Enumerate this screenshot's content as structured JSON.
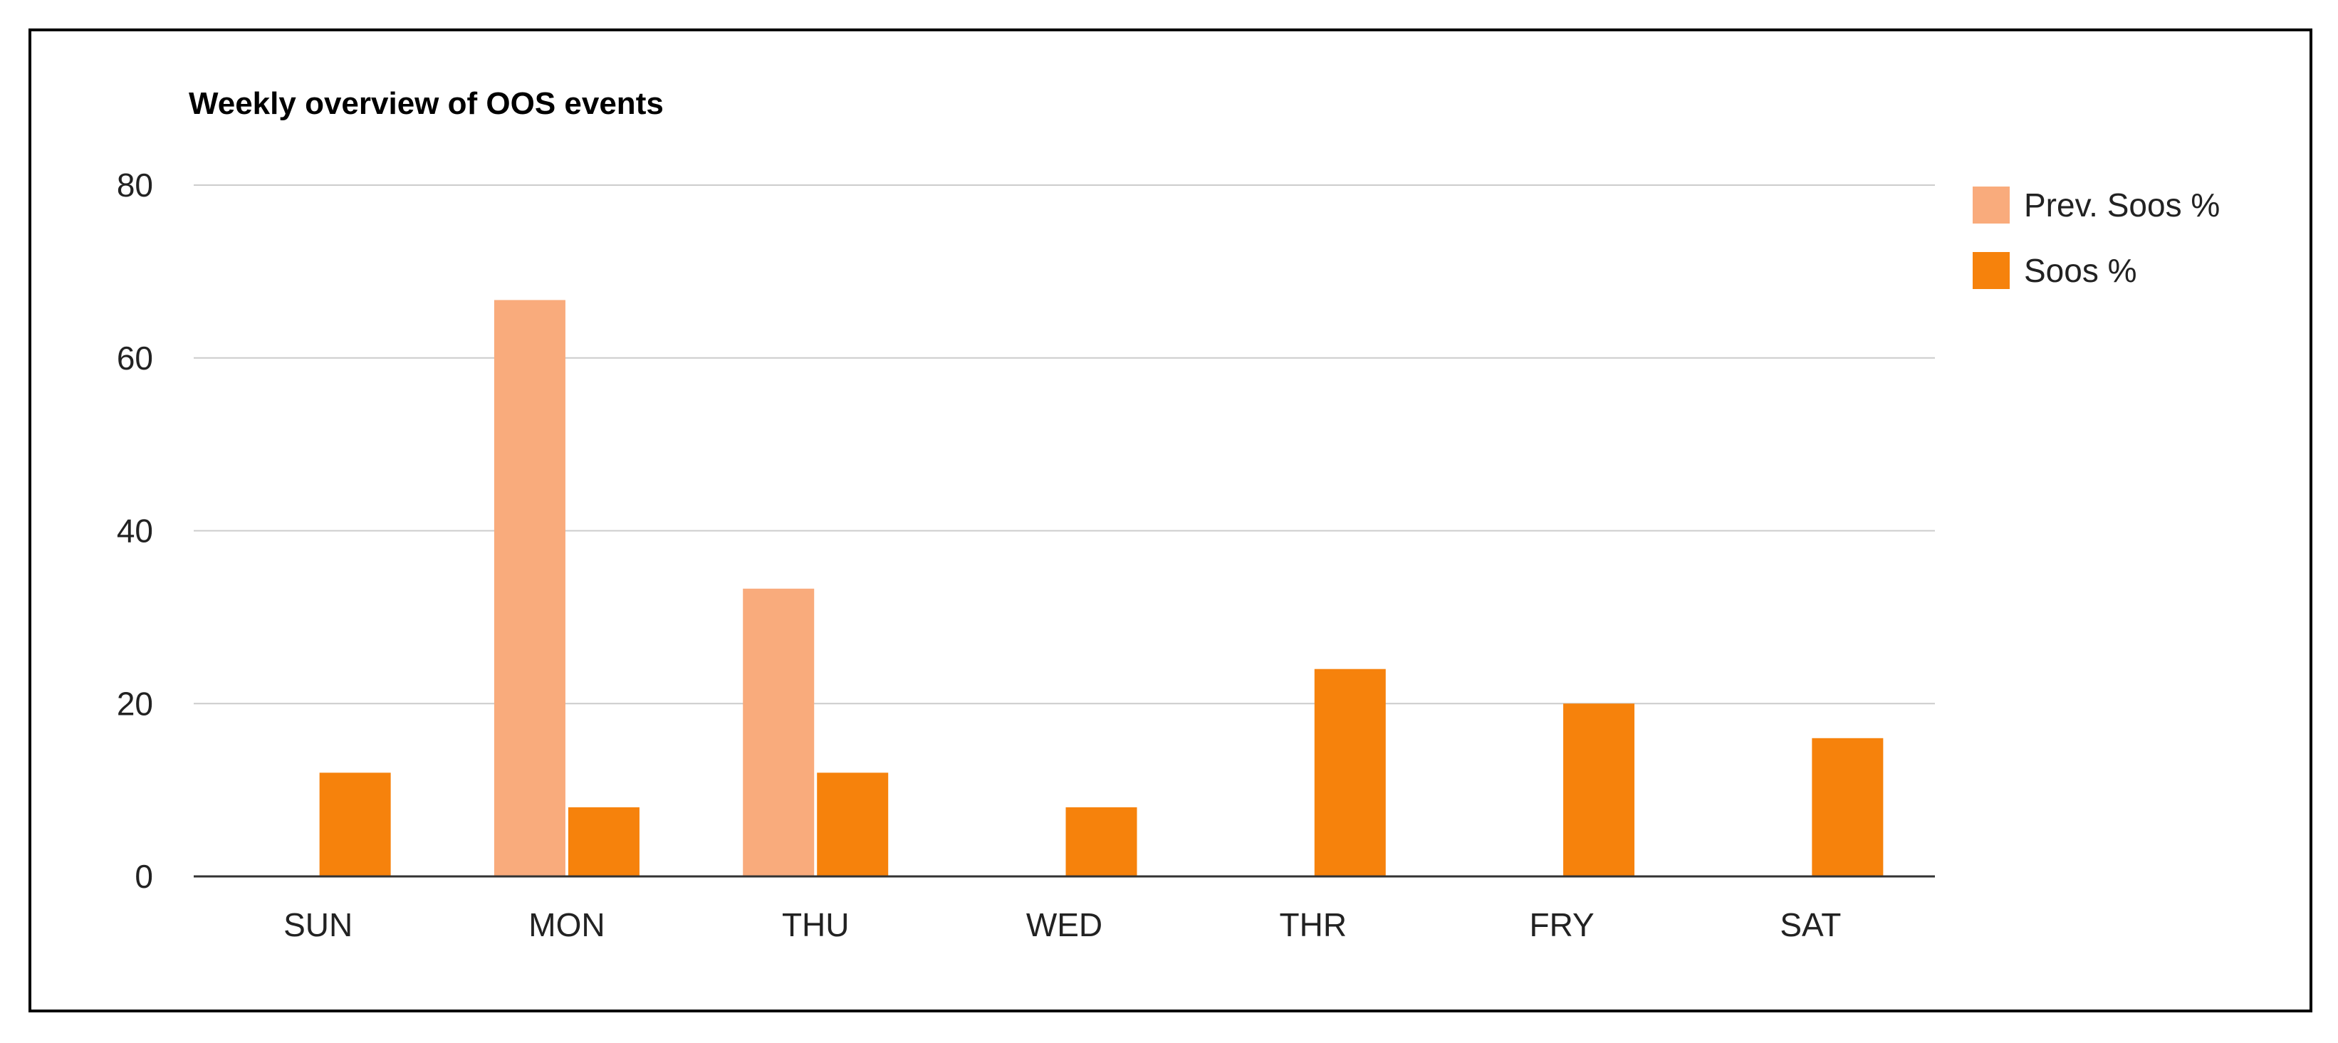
{
  "chart_data": {
    "type": "bar",
    "title": "Weekly overview of OOS events",
    "xlabel": "",
    "ylabel": "",
    "categories": [
      "SUN",
      "MON",
      "THU",
      "WED",
      "THR",
      "FRY",
      "SAT"
    ],
    "series": [
      {
        "name": "Prev. Soos %",
        "color": "#f9ab7c",
        "values": [
          0,
          66.7,
          33.3,
          0,
          0,
          0,
          0
        ]
      },
      {
        "name": "Soos %",
        "color": "#f6820c",
        "values": [
          12,
          8,
          12,
          8,
          24,
          20,
          16
        ]
      }
    ],
    "ylim": [
      0,
      80
    ],
    "yticks": [
      0,
      20,
      40,
      60,
      80
    ],
    "grid": true,
    "legend": "right"
  }
}
